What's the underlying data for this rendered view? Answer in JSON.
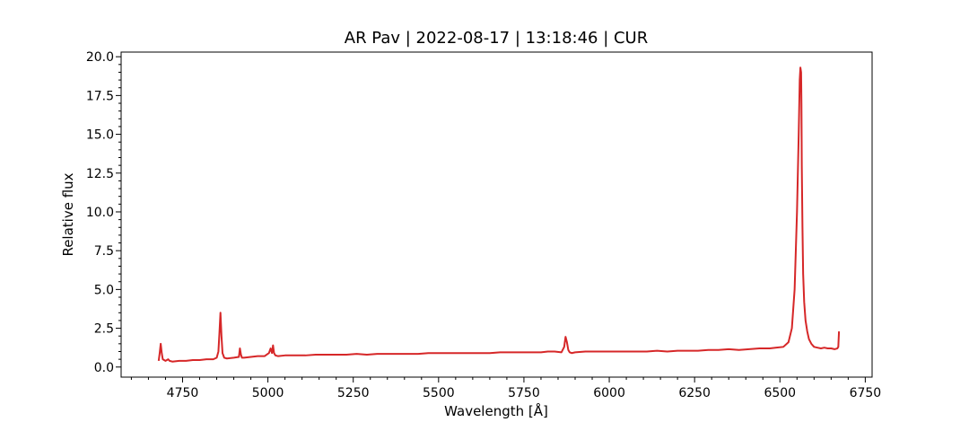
{
  "chart_data": {
    "type": "line",
    "title": "AR Pav | 2022-08-17 | 13:18:46 | CUR",
    "xlabel": "Wavelength [Å]",
    "ylabel": "Relative flux",
    "xlim": [
      4570,
      6770
    ],
    "ylim": [
      -0.65,
      20.3
    ],
    "xticks": [
      4750,
      5000,
      5250,
      5500,
      5750,
      6000,
      6250,
      6500,
      6750
    ],
    "xtick_labels": [
      "4750",
      "5000",
      "5250",
      "5500",
      "5750",
      "6000",
      "6250",
      "6500",
      "6750"
    ],
    "yticks": [
      0.0,
      2.5,
      5.0,
      7.5,
      10.0,
      12.5,
      15.0,
      17.5,
      20.0
    ],
    "ytick_labels": [
      "0.0",
      "2.5",
      "5.0",
      "7.5",
      "10.0",
      "12.5",
      "15.0",
      "17.5",
      "20.0"
    ],
    "grid": false,
    "series": [
      {
        "color": "#d62728",
        "x": [
          4680,
          4683,
          4686,
          4689,
          4692,
          4700,
          4708,
          4712,
          4720,
          4740,
          4760,
          4780,
          4800,
          4820,
          4840,
          4850,
          4855,
          4858,
          4861,
          4864,
          4867,
          4872,
          4880,
          4900,
          4915,
          4918,
          4921,
          4924,
          4930,
          4950,
          4970,
          4990,
          5003,
          5008,
          5012,
          5015,
          5018,
          5022,
          5030,
          5050,
          5080,
          5110,
          5140,
          5170,
          5200,
          5230,
          5260,
          5290,
          5320,
          5350,
          5380,
          5410,
          5440,
          5470,
          5500,
          5530,
          5560,
          5590,
          5620,
          5650,
          5680,
          5710,
          5740,
          5760,
          5770,
          5780,
          5790,
          5800,
          5820,
          5840,
          5860,
          5868,
          5872,
          5876,
          5880,
          5884,
          5890,
          5900,
          5930,
          5960,
          5990,
          6020,
          6050,
          6080,
          6110,
          6140,
          6170,
          6200,
          6230,
          6260,
          6290,
          6320,
          6350,
          6380,
          6410,
          6440,
          6470,
          6490,
          6510,
          6525,
          6535,
          6543,
          6550,
          6555,
          6558,
          6560,
          6562,
          6563,
          6564,
          6566,
          6568,
          6571,
          6575,
          6580,
          6585,
          6592,
          6600,
          6610,
          6620,
          6630,
          6640,
          6650,
          6660,
          6668,
          6671,
          6673
        ],
        "y": [
          0.4,
          0.9,
          1.5,
          0.9,
          0.5,
          0.4,
          0.5,
          0.4,
          0.35,
          0.4,
          0.4,
          0.45,
          0.45,
          0.5,
          0.5,
          0.6,
          1.0,
          2.2,
          3.5,
          2.0,
          0.9,
          0.6,
          0.55,
          0.6,
          0.65,
          1.2,
          0.8,
          0.6,
          0.6,
          0.65,
          0.7,
          0.7,
          0.9,
          1.2,
          0.9,
          1.4,
          0.9,
          0.75,
          0.7,
          0.75,
          0.75,
          0.75,
          0.8,
          0.8,
          0.8,
          0.8,
          0.85,
          0.8,
          0.85,
          0.85,
          0.85,
          0.85,
          0.85,
          0.9,
          0.9,
          0.9,
          0.9,
          0.9,
          0.9,
          0.9,
          0.95,
          0.95,
          0.95,
          0.95,
          0.95,
          0.95,
          0.95,
          0.95,
          1.0,
          1.0,
          0.95,
          1.3,
          1.95,
          1.6,
          1.1,
          0.95,
          0.9,
          0.95,
          1.0,
          1.0,
          1.0,
          1.0,
          1.0,
          1.0,
          1.0,
          1.05,
          1.0,
          1.05,
          1.05,
          1.05,
          1.1,
          1.1,
          1.15,
          1.1,
          1.15,
          1.2,
          1.2,
          1.25,
          1.3,
          1.6,
          2.5,
          5.0,
          10.0,
          15.0,
          18.5,
          19.3,
          19.0,
          17.0,
          13.0,
          9.0,
          6.0,
          4.2,
          3.0,
          2.3,
          1.8,
          1.5,
          1.3,
          1.25,
          1.2,
          1.25,
          1.2,
          1.2,
          1.15,
          1.2,
          1.3,
          2.3
        ]
      }
    ]
  }
}
